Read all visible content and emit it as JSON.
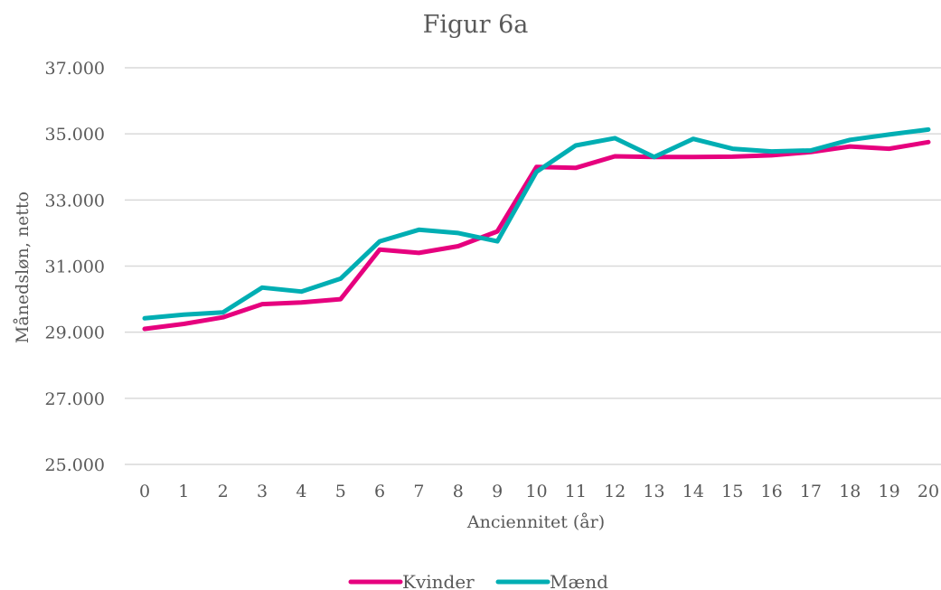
{
  "chart_data": {
    "type": "line",
    "title": "Figur 6a",
    "xlabel": "Anciennitet (år)",
    "ylabel": "Månedsløn, netto",
    "x": [
      0,
      1,
      2,
      3,
      4,
      5,
      6,
      7,
      8,
      9,
      10,
      11,
      12,
      13,
      14,
      15,
      16,
      17,
      18,
      19,
      20
    ],
    "x_tick_labels": [
      "0",
      "1",
      "2",
      "3",
      "4",
      "5",
      "6",
      "7",
      "8",
      "9",
      "10",
      "11",
      "12",
      "13",
      "14",
      "15",
      "16",
      "17",
      "18",
      "19",
      "20"
    ],
    "ylim": [
      25000,
      37000
    ],
    "y_ticks": [
      25000,
      27000,
      29000,
      31000,
      33000,
      35000,
      37000
    ],
    "y_tick_labels": [
      "25.000",
      "27.000",
      "29.000",
      "31.000",
      "33.000",
      "35.000",
      "37.000"
    ],
    "grid": true,
    "legend_position": "bottom",
    "series": [
      {
        "name": "Kvinder",
        "color": "#E6007E",
        "values": [
          29100,
          29250,
          29450,
          29850,
          29900,
          30000,
          31500,
          31400,
          31600,
          32050,
          34000,
          33970,
          34320,
          34300,
          34300,
          34310,
          34350,
          34450,
          34620,
          34550,
          34750
        ]
      },
      {
        "name": "Mænd",
        "color": "#00AEB3",
        "values": [
          29420,
          29530,
          29600,
          30350,
          30230,
          30620,
          31750,
          32100,
          32000,
          31750,
          33850,
          34650,
          34870,
          34300,
          34850,
          34550,
          34470,
          34500,
          34820,
          34980,
          35130
        ]
      }
    ]
  }
}
